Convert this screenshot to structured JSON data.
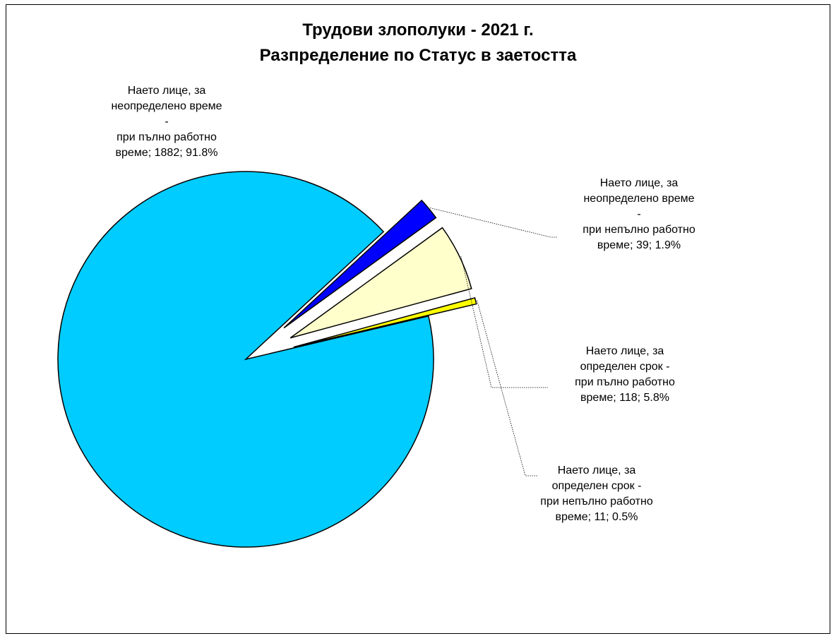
{
  "chart_data": {
    "type": "pie",
    "title_lines": [
      "Трудови злополуки - 2021 г.",
      "Разпределение по Статус в заетостта"
    ],
    "slices": [
      {
        "value": 1882,
        "percent": "91.8%",
        "color": "#00CCFF",
        "label_lines": [
          "Наето лице, за",
          "неопределено време",
          "-",
          "при пълно работно",
          "време; 1882; 91.8%"
        ]
      },
      {
        "value": 39,
        "percent": "1.9%",
        "color": "#0000FF",
        "label_lines": [
          "Наето лице, за",
          "неопределено време",
          "-",
          "при непълно работно",
          "време; 39; 1.9%"
        ]
      },
      {
        "value": 118,
        "percent": "5.8%",
        "color": "#FFFFCC",
        "label_lines": [
          "Наето лице, за",
          "определен срок -",
          "при пълно работно",
          "време; 118; 5.8%"
        ]
      },
      {
        "value": 11,
        "percent": "0.5%",
        "color": "#FFFF00",
        "label_lines": [
          "Наето лице, за",
          "определен срок -",
          "при непълно работно",
          "време; 11; 0.5%"
        ]
      }
    ],
    "legend": "none",
    "leader_lines": true
  }
}
